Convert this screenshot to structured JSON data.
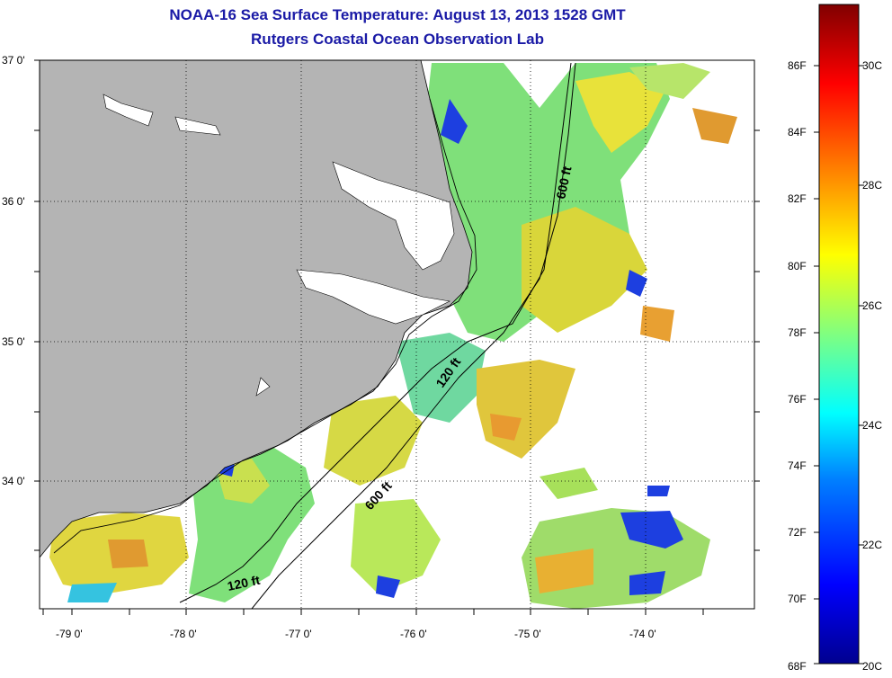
{
  "title": "NOAA-16 Sea Surface Temperature:  August 13, 2013 1528 GMT",
  "subtitle": "Rutgers Coastal Ocean Observation Lab",
  "lat_labels": [
    "37 0'",
    "36 0'",
    "35 0'",
    "34 0'"
  ],
  "lon_labels": [
    "-79 0'",
    "-78 0'",
    "-77 0'",
    "-76 0'",
    "-75 0'",
    "-74 0'"
  ],
  "depth_contours": {
    "label_120_north": "120 ft",
    "label_120_south": "120 ft",
    "label_600_north": "600 ft",
    "label_600_south": "600 ft"
  },
  "colorbar": {
    "fahrenheit_labels": [
      "86F",
      "84F",
      "82F",
      "80F",
      "78F",
      "76F",
      "74F",
      "72F",
      "70F",
      "68F"
    ],
    "celsius_labels": [
      "30C",
      "28C",
      "26C",
      "24C",
      "22C",
      "20C"
    ],
    "colors": [
      "#00008f",
      "#0000ff",
      "#0080ff",
      "#00ffff",
      "#80ff80",
      "#ffff00",
      "#ff8000",
      "#ff0000",
      "#800000"
    ]
  },
  "colors": {
    "land": "#b4b4b4",
    "cloud_no_data": "#ffffff",
    "title": "#1a1aa6"
  }
}
